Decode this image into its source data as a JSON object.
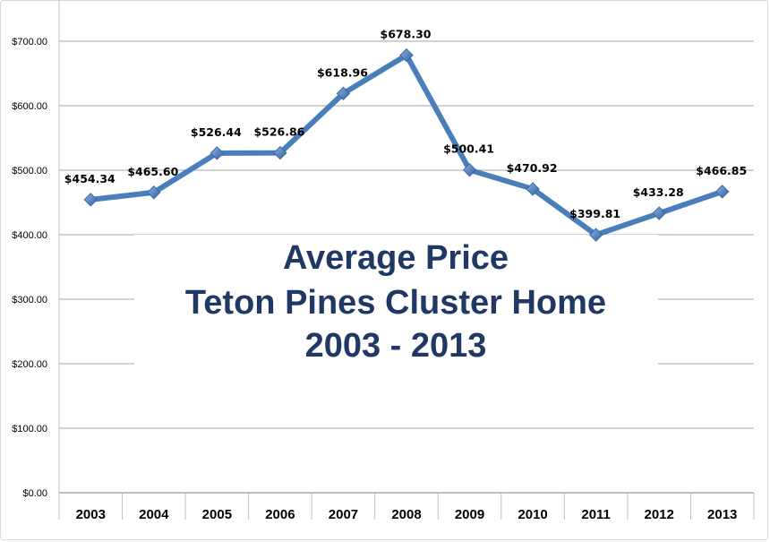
{
  "chart_data": {
    "type": "line",
    "title_lines": [
      "Average Price",
      "Teton Pines Cluster Home",
      "2003 - 2013"
    ],
    "categories": [
      "2003",
      "2004",
      "2005",
      "2006",
      "2007",
      "2008",
      "2009",
      "2010",
      "2011",
      "2012",
      "2013"
    ],
    "series": [
      {
        "name": "Average Price",
        "values": [
          454.34,
          465.6,
          526.44,
          526.86,
          618.96,
          678.3,
          500.41,
          470.92,
          399.81,
          433.28,
          466.85
        ],
        "labels": [
          "$454.34",
          "$465.60",
          "$526.44",
          "$526.86",
          "$618.96",
          "$678.30",
          "$500.41",
          "$470.92",
          "$399.81",
          "$433.28",
          "$466.85"
        ]
      }
    ],
    "ylim": [
      0,
      700
    ],
    "yticks": [
      0,
      100,
      200,
      300,
      400,
      500,
      600,
      700
    ],
    "ytick_labels": [
      "$0.00",
      "$100.00",
      "$200.00",
      "$300.00",
      "$400.00",
      "$500.00",
      "$600.00",
      "$700.00"
    ],
    "grid": true,
    "xlabel": "",
    "ylabel": "",
    "colors": {
      "line": "#4a7ebb",
      "marker": "#4f81bd",
      "grid": "#a6a6a6",
      "title": "#1f3864"
    }
  }
}
